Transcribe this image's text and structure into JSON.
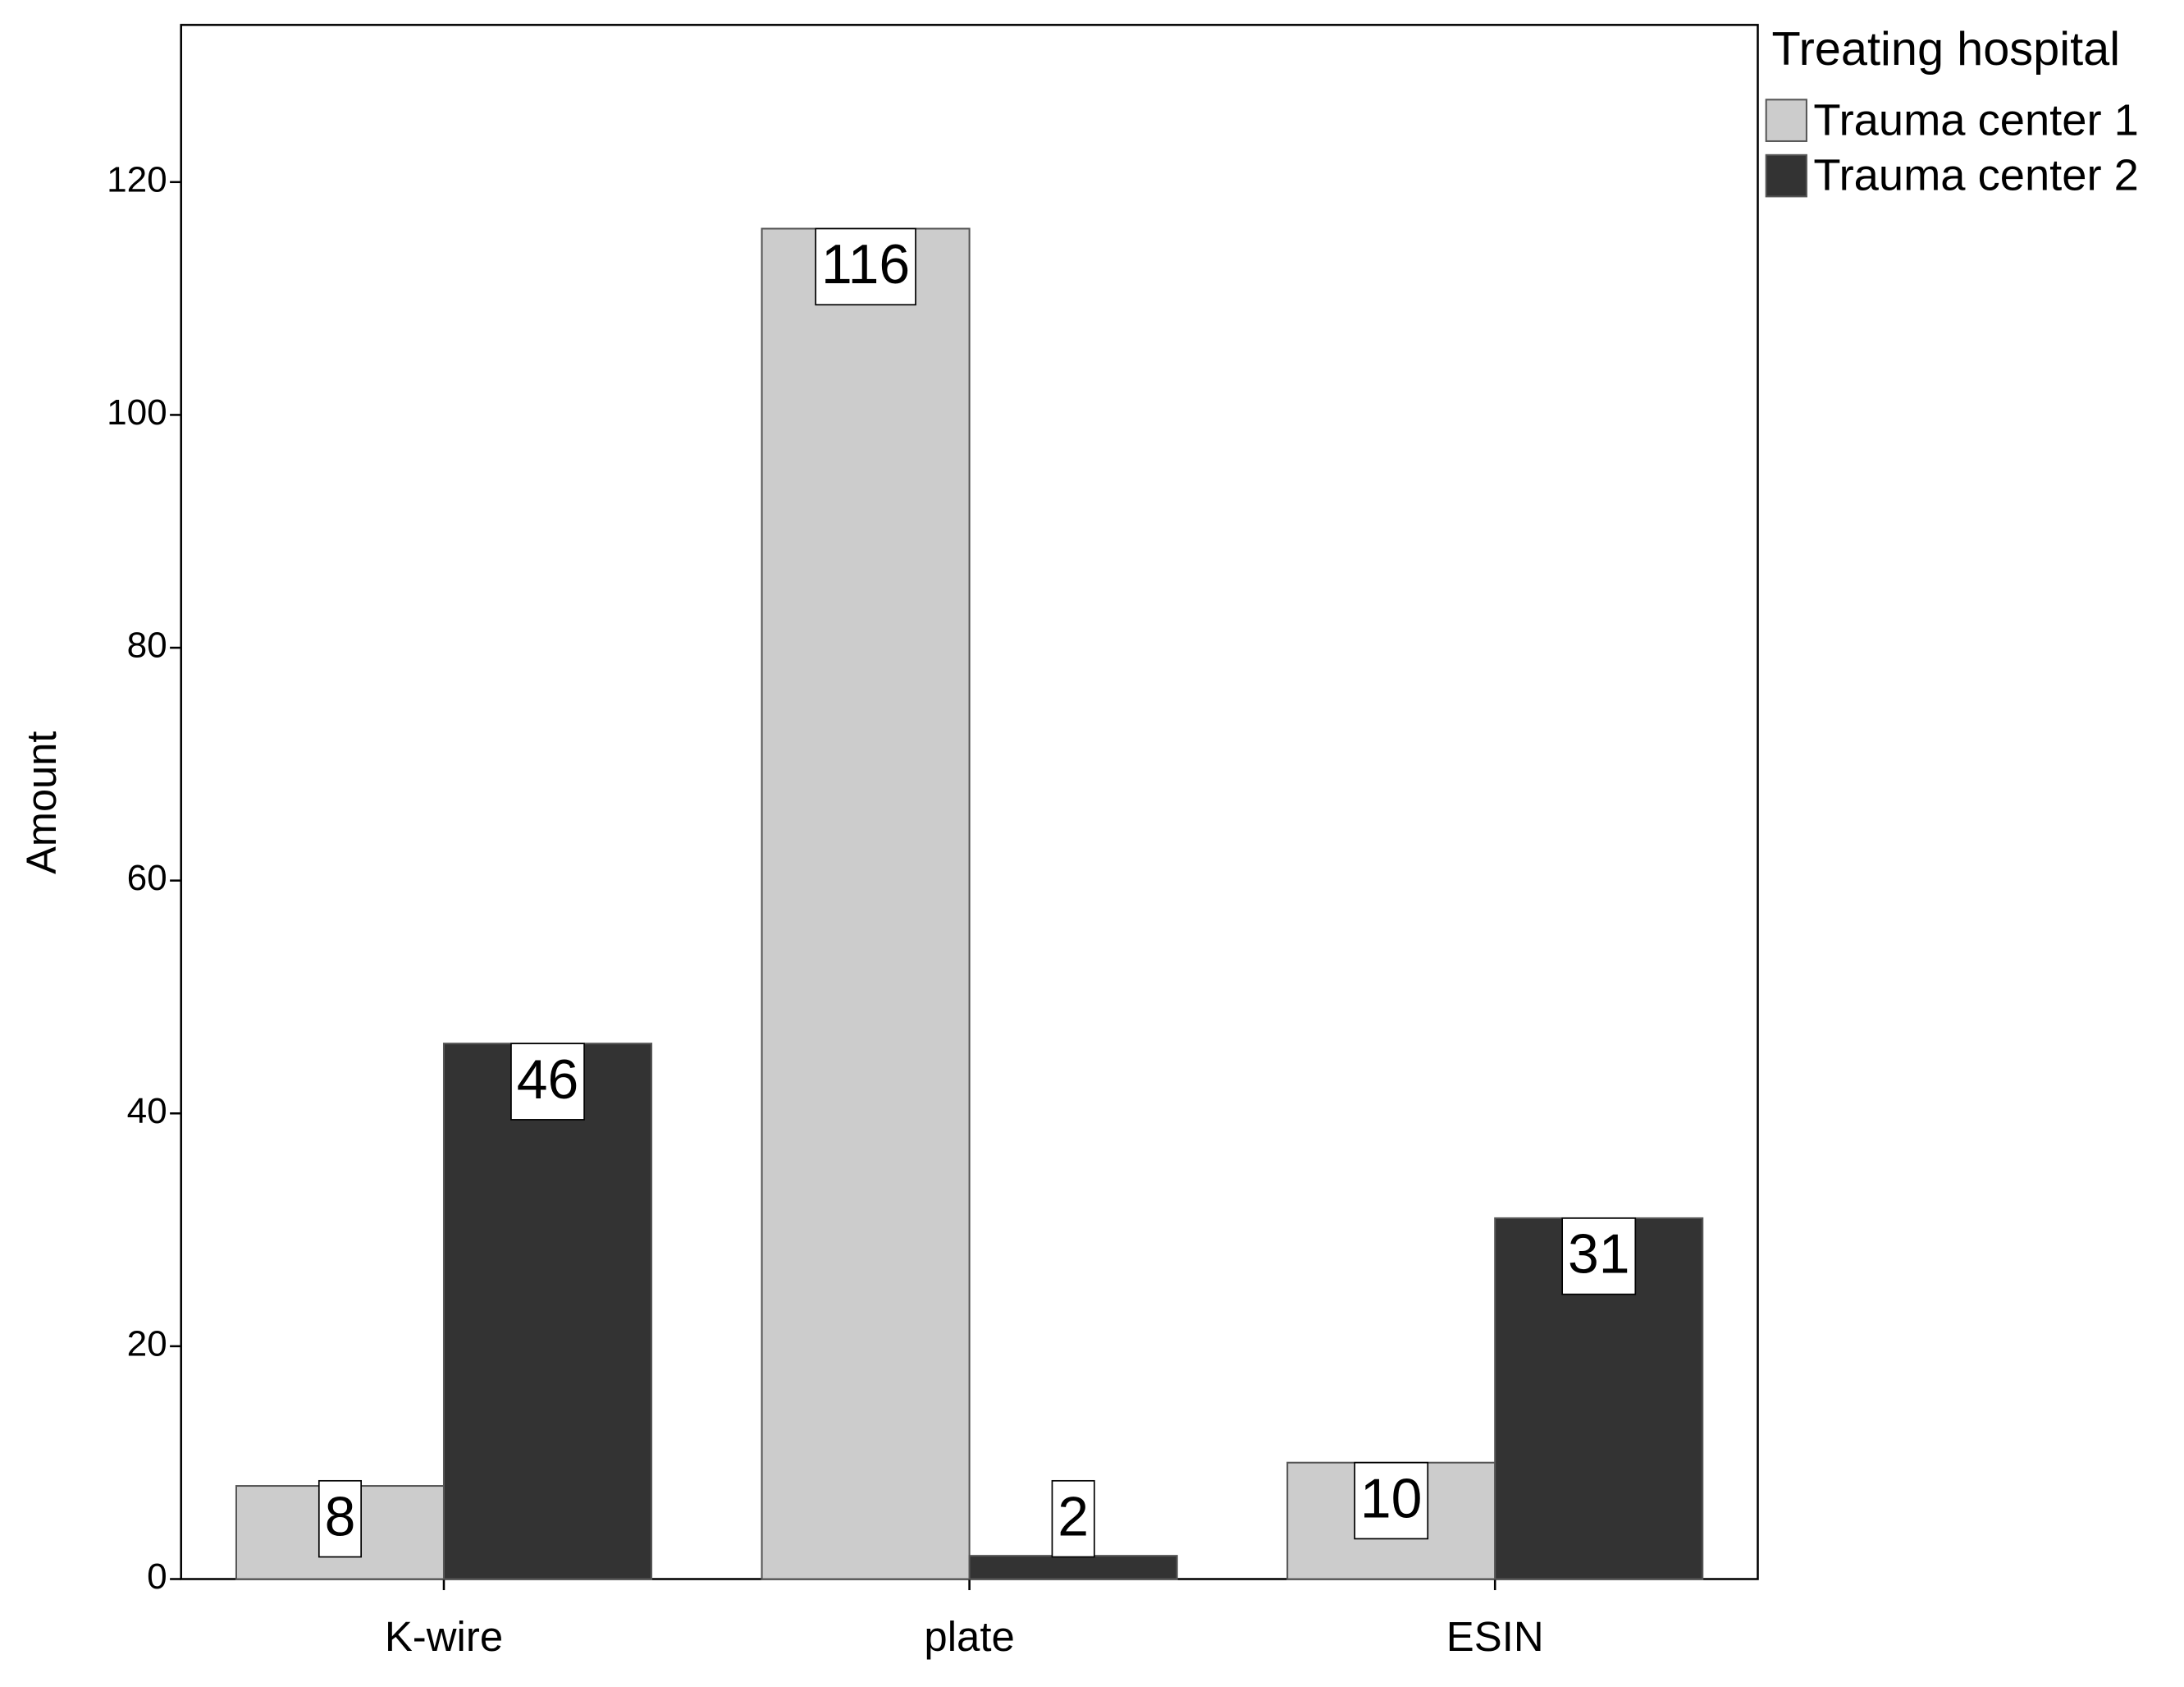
{
  "chart_data": {
    "type": "bar",
    "y_label": "Amount",
    "legend_title": "Treating hospital",
    "categories": [
      "K-wire",
      "plate",
      "ESIN"
    ],
    "series": [
      {
        "name": "Trauma center 1",
        "color": "#cccccc",
        "values": [
          8,
          116,
          10
        ]
      },
      {
        "name": "Trauma center 2",
        "color": "#333333",
        "values": [
          46,
          2,
          31
        ]
      }
    ],
    "ylim": [
      0,
      133.5
    ],
    "yticks": [
      0,
      20,
      40,
      60,
      80,
      100,
      120
    ],
    "grid": false,
    "legend": "outside-right"
  }
}
